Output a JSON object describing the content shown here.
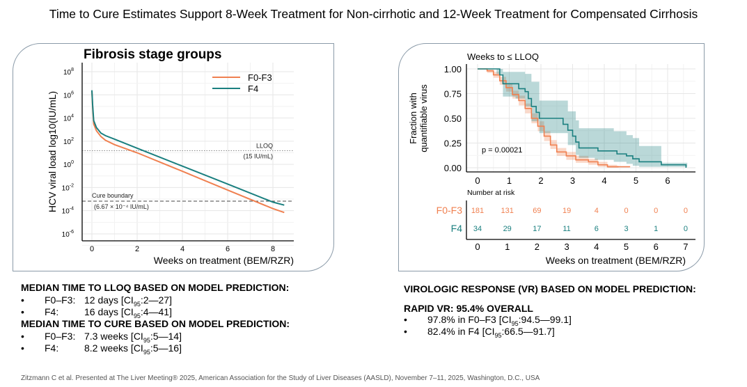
{
  "title": "Time to Cure Estimates Support 8-Week Treatment for Non-cirrhotic and 12-Week Treatment for Compensated Cirrhosis",
  "chart_data": [
    {
      "type": "line",
      "title": "Fibrosis stage groups",
      "xlabel": "Weeks on treatment (BEM/RZR)",
      "ylabel": "HCV viral load log10(IU/mL)",
      "xlim": [
        -0.3,
        8.9
      ],
      "xticks": [
        "0",
        "2",
        "4",
        "6",
        "8"
      ],
      "ylim": [
        1e-07,
        1000000000.0
      ],
      "yscale": "log",
      "yticks": [
        "10^8",
        "10^6",
        "10^4",
        "10^2",
        "10^0",
        "10^-2",
        "10^-4",
        "10^-6"
      ],
      "grid": true,
      "legend": "top-right",
      "series": [
        {
          "name": "F0-F3",
          "color": "#f08050",
          "points": [
            [
              0,
              2000000.0
            ],
            [
              0.03,
              100000.0
            ],
            [
              0.08,
              3000.0
            ],
            [
              0.2,
              800.0
            ],
            [
              0.4,
              250.0
            ],
            [
              0.6,
              120.0
            ],
            [
              1,
              50.0
            ],
            [
              2,
              10.0
            ],
            [
              4,
              0.25
            ],
            [
              6,
              0.006
            ],
            [
              8,
              0.00015
            ],
            [
              8.5,
              7e-05
            ]
          ]
        },
        {
          "name": "F4",
          "color": "#1a7f7f",
          "points": [
            [
              0,
              2500000.0
            ],
            [
              0.03,
              150000.0
            ],
            [
              0.08,
              6000.0
            ],
            [
              0.2,
              1500.0
            ],
            [
              0.4,
              500.0
            ],
            [
              0.6,
              300.0
            ],
            [
              1,
              150.0
            ],
            [
              2,
              25.0
            ],
            [
              4,
              0.7
            ],
            [
              6,
              0.02
            ],
            [
              8,
              0.00055
            ],
            [
              8.5,
              0.0003
            ]
          ]
        }
      ],
      "reference_lines": [
        {
          "label": "LLOQ",
          "sublabel": "(15 IU/mL)",
          "value": 15,
          "style": "dotted"
        },
        {
          "label": "Cure boundary",
          "sublabel": "(6.67 × 10⁻⁴ IU/mL)",
          "value": 0.000667,
          "style": "dashed"
        }
      ]
    },
    {
      "type": "line",
      "title": "Weeks to ≤ LLOQ",
      "xlabel": "Weeks on treatment (BEM/RZR)",
      "ylabel": "Fraction with quantifiable virus",
      "xlim": [
        -0.3,
        7.9
      ],
      "xticks": [
        "0",
        "1",
        "2",
        "3",
        "4",
        "5",
        "6"
      ],
      "ylim": [
        0,
        1
      ],
      "yticks": [
        "0.00",
        "0.25",
        "0.50",
        "0.75",
        "1.00"
      ],
      "grid": true,
      "annotation": "p = 0.00021",
      "series": [
        {
          "name": "F0-F3",
          "color": "#f08050",
          "steps": [
            [
              0,
              1
            ],
            [
              0.3,
              0.98
            ],
            [
              0.5,
              0.94
            ],
            [
              0.7,
              0.88
            ],
            [
              0.9,
              0.81
            ],
            [
              1.1,
              0.74
            ],
            [
              1.3,
              0.68
            ],
            [
              1.5,
              0.6
            ],
            [
              1.7,
              0.5
            ],
            [
              1.9,
              0.42
            ],
            [
              2.1,
              0.32
            ],
            [
              2.3,
              0.23
            ],
            [
              2.5,
              0.16
            ],
            [
              2.8,
              0.12
            ],
            [
              3.1,
              0.08
            ],
            [
              3.5,
              0.06
            ],
            [
              3.8,
              0.03
            ],
            [
              4.1,
              0.01
            ],
            [
              4.8,
              0.005
            ]
          ],
          "ci": [
            [
              0,
              1,
              1
            ],
            [
              0.3,
              0.96,
              1
            ],
            [
              0.5,
              0.91,
              0.97
            ],
            [
              0.7,
              0.84,
              0.92
            ],
            [
              0.9,
              0.77,
              0.85
            ],
            [
              1.1,
              0.7,
              0.78
            ],
            [
              1.3,
              0.63,
              0.73
            ],
            [
              1.5,
              0.55,
              0.65
            ],
            [
              1.7,
              0.45,
              0.55
            ],
            [
              1.9,
              0.37,
              0.47
            ],
            [
              2.1,
              0.27,
              0.37
            ],
            [
              2.3,
              0.19,
              0.28
            ],
            [
              2.5,
              0.12,
              0.2
            ],
            [
              2.8,
              0.08,
              0.16
            ],
            [
              3.1,
              0.05,
              0.12
            ],
            [
              3.5,
              0.03,
              0.09
            ],
            [
              3.8,
              0.01,
              0.06
            ],
            [
              4.1,
              0,
              0.03
            ],
            [
              4.4,
              0,
              0.02
            ]
          ]
        },
        {
          "name": "F4",
          "color": "#1a7f7f",
          "steps": [
            [
              0,
              1
            ],
            [
              0.6,
              1
            ],
            [
              0.7,
              0.94
            ],
            [
              0.8,
              0.85
            ],
            [
              1.2,
              0.85
            ],
            [
              1.3,
              0.8
            ],
            [
              1.5,
              0.77
            ],
            [
              1.6,
              0.7
            ],
            [
              1.7,
              0.62
            ],
            [
              1.85,
              0.56
            ],
            [
              1.95,
              0.5
            ],
            [
              2.6,
              0.5
            ],
            [
              2.7,
              0.44
            ],
            [
              2.85,
              0.38
            ],
            [
              3.0,
              0.32
            ],
            [
              3.1,
              0.26
            ],
            [
              3.2,
              0.2
            ],
            [
              3.7,
              0.2
            ],
            [
              3.8,
              0.17
            ],
            [
              4.3,
              0.17
            ],
            [
              4.4,
              0.14
            ],
            [
              4.7,
              0.12
            ],
            [
              4.9,
              0.09
            ],
            [
              5.1,
              0.06
            ],
            [
              5.75,
              0.06
            ],
            [
              5.8,
              0.03
            ],
            [
              6.57,
              0.03
            ],
            [
              6.58,
              0.0
            ]
          ],
          "ci": [
            [
              0,
              1,
              1
            ],
            [
              0.6,
              0.95,
              1
            ],
            [
              0.8,
              0.72,
              0.97
            ],
            [
              1.2,
              0.7,
              0.97
            ],
            [
              1.5,
              0.62,
              0.95
            ],
            [
              1.7,
              0.47,
              0.87
            ],
            [
              1.95,
              0.35,
              0.68
            ],
            [
              2.6,
              0.35,
              0.68
            ],
            [
              2.85,
              0.23,
              0.57
            ],
            [
              3.1,
              0.13,
              0.48
            ],
            [
              3.2,
              0.1,
              0.4
            ],
            [
              3.7,
              0.08,
              0.4
            ],
            [
              4.3,
              0.06,
              0.37
            ],
            [
              4.7,
              0.04,
              0.33
            ],
            [
              4.9,
              0.02,
              0.3
            ],
            [
              5.1,
              0.01,
              0.22
            ],
            [
              5.75,
              0.01,
              0.22
            ],
            [
              5.8,
              0.01,
              0.05
            ],
            [
              6.57,
              0.01,
              0.05
            ]
          ]
        }
      ],
      "risk_table": {
        "title": "Number at risk",
        "times": [
          "0",
          "1",
          "2",
          "3",
          "4",
          "5",
          "6",
          "7"
        ],
        "rows": [
          {
            "name": "F0-F3",
            "color": "#f08050",
            "values": [
              "181",
              "131",
              "69",
              "19",
              "4",
              "0",
              "0",
              "0"
            ]
          },
          {
            "name": "F4",
            "color": "#1a7f7f",
            "values": [
              "34",
              "29",
              "17",
              "11",
              "6",
              "3",
              "1",
              "0"
            ]
          }
        ]
      }
    }
  ],
  "left_text": {
    "heading1": "MEDIAN TIME TO LLOQ BASED ON MODEL PREDICTION:",
    "items1": [
      {
        "label": "F0–F3:",
        "pre": "12 days [CI",
        "sub": "95",
        "post": ":2—27]"
      },
      {
        "label": "F4:",
        "pre": "16 days [CI",
        "sub": "95",
        "post": ":4—41]"
      }
    ],
    "heading2": "MEDIAN TIME TO CURE BASED ON MODEL PREDICTION:",
    "items2": [
      {
        "label": "F0–F3:",
        "pre": "7.3 weeks [CI",
        "sub": "95",
        "post": ":5—14]"
      },
      {
        "label": "F4:",
        "pre": "8.2 weeks [CI",
        "sub": "95",
        "post": ":5—16]"
      }
    ]
  },
  "right_text": {
    "heading1": "VIROLOGIC RESPONSE (VR) BASED ON MODEL PREDICTION:",
    "heading2": "RAPID VR: 95.4% OVERALL",
    "items": [
      {
        "pre": "97.8% in F0–F3 [CI",
        "sub": "95",
        "post": ":94.5—99.1]"
      },
      {
        "pre": "82.4% in F4 [CI",
        "sub": "95",
        "post": ":66.5—91.7]"
      }
    ]
  },
  "footer": "Zitzmann C et al. Presented at The Liver Meeting® 2025, American Association for the Study of Liver Diseases (AASLD), November 7–11, 2025, Washington, D.C., USA",
  "bullet": "•"
}
